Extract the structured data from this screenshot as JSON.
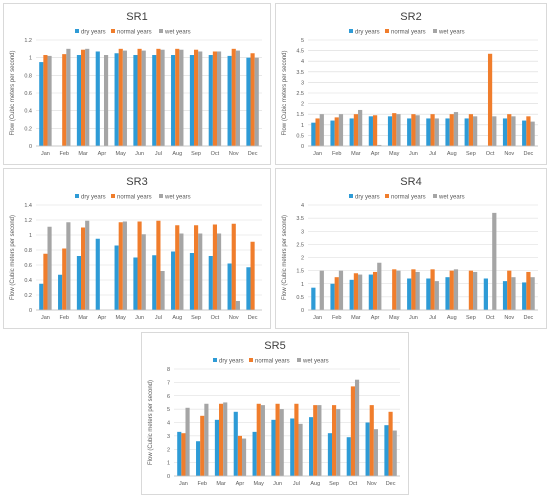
{
  "legend_labels": [
    "dry years",
    "normal years",
    "wet years"
  ],
  "colors": {
    "dry": "#2e9bd6",
    "normal": "#f07d2c",
    "wet": "#a5a5a5"
  },
  "chart_data": [
    {
      "type": "bar",
      "title": "SR1",
      "ylabel": "Flow (Cubic meters per second)",
      "categories": [
        "Jan",
        "Feb",
        "Mar",
        "Apr",
        "May",
        "Jun",
        "Jul",
        "Aug",
        "Sep",
        "Oct",
        "Nov",
        "Dec"
      ],
      "yticks": [
        "0",
        "0.2",
        "0.4",
        "0.6",
        "0.8",
        "1",
        "1.2"
      ],
      "ylim": [
        0,
        1.2
      ],
      "series": [
        {
          "name": "dry years",
          "values": [
            0.95,
            0,
            1.03,
            1.07,
            1.05,
            1.03,
            1.03,
            1.03,
            1.03,
            1.03,
            1.02,
            1.0
          ]
        },
        {
          "name": "normal years",
          "values": [
            1.03,
            1.04,
            1.09,
            0,
            1.1,
            1.1,
            1.1,
            1.1,
            1.09,
            1.07,
            1.1,
            1.05
          ]
        },
        {
          "name": "wet years",
          "values": [
            1.02,
            1.1,
            1.1,
            1.03,
            1.08,
            1.08,
            1.09,
            1.09,
            1.07,
            1.07,
            1.08,
            1.0
          ]
        }
      ]
    },
    {
      "type": "bar",
      "title": "SR2",
      "ylabel": "Flow (Cubic meters per second)",
      "categories": [
        "Jan",
        "Feb",
        "Mar",
        "Apr",
        "May",
        "Jun",
        "Jul",
        "Aug",
        "Sep",
        "Oct",
        "Nov",
        "Dec"
      ],
      "yticks": [
        "0",
        "0.5",
        "1",
        "1.5",
        "2",
        "2.5",
        "3",
        "3.5",
        "4",
        "4.5",
        "5"
      ],
      "ylim": [
        0,
        5
      ],
      "series": [
        {
          "name": "dry years",
          "values": [
            1.1,
            1.2,
            1.3,
            1.4,
            1.4,
            1.3,
            1.3,
            1.3,
            1.3,
            0,
            1.3,
            1.2
          ]
        },
        {
          "name": "normal years",
          "values": [
            1.3,
            1.35,
            1.5,
            1.45,
            1.55,
            1.5,
            1.5,
            1.5,
            1.5,
            4.35,
            1.5,
            1.4
          ]
        },
        {
          "name": "wet years",
          "values": [
            1.5,
            1.5,
            1.7,
            0.05,
            1.5,
            1.45,
            1.3,
            1.6,
            1.4,
            1.4,
            1.4,
            1.15
          ]
        }
      ]
    },
    {
      "type": "bar",
      "title": "SR3",
      "ylabel": "Flow (Cubic meters per second)",
      "categories": [
        "Jan",
        "Feb",
        "Mar",
        "Apr",
        "May",
        "Jun",
        "Jul",
        "Aug",
        "Sep",
        "Oct",
        "Nov",
        "Dec"
      ],
      "yticks": [
        "0",
        "0.2",
        "0.4",
        "0.6",
        "0.8",
        "1",
        "1.2",
        "1.4"
      ],
      "ylim": [
        0,
        1.4
      ],
      "series": [
        {
          "name": "dry years",
          "values": [
            0.35,
            0.47,
            0.72,
            0.95,
            0.86,
            0.7,
            0.73,
            0.78,
            0.76,
            0.72,
            0.62,
            0.57
          ]
        },
        {
          "name": "normal years",
          "values": [
            0.75,
            0.82,
            1.1,
            0,
            1.17,
            1.18,
            1.19,
            1.13,
            1.13,
            1.14,
            1.15,
            0.91
          ]
        },
        {
          "name": "wet years",
          "values": [
            1.11,
            1.17,
            1.19,
            0,
            1.18,
            1.01,
            0.52,
            1.02,
            1.02,
            1.02,
            0.12,
            0
          ]
        }
      ]
    },
    {
      "type": "bar",
      "title": "SR4",
      "ylabel": "Flow (Cubic meters per second)",
      "categories": [
        "Jan",
        "Feb",
        "Mar",
        "Apr",
        "May",
        "Jun",
        "Jul",
        "Aug",
        "Sep",
        "Oct",
        "Nov",
        "Dec"
      ],
      "yticks": [
        "0",
        "0.5",
        "1",
        "1.5",
        "2",
        "2.5",
        "3",
        "3.5",
        "4"
      ],
      "ylim": [
        0,
        4
      ],
      "series": [
        {
          "name": "dry years",
          "values": [
            0.85,
            1.0,
            1.15,
            1.35,
            0,
            1.2,
            1.2,
            1.25,
            0,
            1.2,
            1.1,
            1.05
          ]
        },
        {
          "name": "normal years",
          "values": [
            0,
            1.25,
            1.4,
            1.45,
            1.55,
            1.55,
            1.55,
            1.5,
            1.5,
            0,
            1.5,
            1.45
          ]
        },
        {
          "name": "wet years",
          "values": [
            1.5,
            1.5,
            1.35,
            1.8,
            1.5,
            1.45,
            1.1,
            1.55,
            1.45,
            3.7,
            1.25,
            1.25
          ]
        }
      ]
    },
    {
      "type": "bar",
      "title": "SR5",
      "ylabel": "Flow (Cubic meters per second)",
      "categories": [
        "Jan",
        "Feb",
        "Mar",
        "Apr",
        "May",
        "Jun",
        "Jul",
        "Aug",
        "Sep",
        "Oct",
        "Nov",
        "Dec"
      ],
      "yticks": [
        "0",
        "1",
        "2",
        "3",
        "4",
        "5",
        "6",
        "7",
        "8"
      ],
      "ylim": [
        0,
        8
      ],
      "series": [
        {
          "name": "dry years",
          "values": [
            3.3,
            2.6,
            4.2,
            4.8,
            3.3,
            4.2,
            4.3,
            4.4,
            3.2,
            2.9,
            4.0,
            3.8
          ]
        },
        {
          "name": "normal years",
          "values": [
            3.2,
            4.5,
            5.4,
            3.0,
            5.4,
            5.4,
            5.4,
            5.3,
            5.3,
            6.7,
            5.3,
            4.8
          ]
        },
        {
          "name": "wet years",
          "values": [
            5.1,
            5.4,
            5.5,
            2.8,
            5.3,
            5.0,
            3.9,
            5.3,
            5.0,
            7.2,
            3.5,
            3.4
          ]
        }
      ]
    }
  ]
}
